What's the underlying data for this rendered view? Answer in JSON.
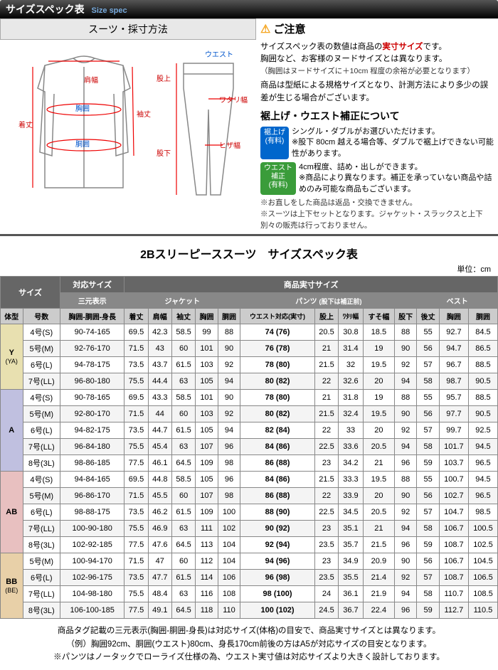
{
  "header": {
    "jp": "サイズスペック表",
    "en": "Size spec"
  },
  "diagram": {
    "title": "スーツ・採寸方法",
    "labels": {
      "kitake": "着丈",
      "katahaba": "肩幅",
      "kyoui": "胸囲",
      "doui": "胴囲",
      "sodetake": "袖丈",
      "waist": "ウエスト",
      "matagami": "股上",
      "watari": "ワタリ幅",
      "matashita": "股下",
      "hiza": "ヒザ幅"
    }
  },
  "notice": {
    "title": "ご注意",
    "line1a": "サイズスペック表の数値は商品の",
    "line1b": "実寸サイズ",
    "line1c": "です。",
    "line2": "胸囲など、お客様のヌードサイズとは異なります。",
    "line3": "（胸囲はヌードサイズに＋10cm 程度の余裕が必要となります）",
    "line4": "商品は型紙による規格サイズとなり、計測方法により多少の誤差が生じる場合がございます。",
    "sub_title": "裾上げ・ウエスト補正について",
    "badge1": "裾上げ\n(有料)",
    "badge1_text": "シングル・ダブルがお選びいただけます。\n※股下 80cm 越える場合等、ダブルで裾上げできない可能性があります。",
    "badge2": "ウエスト\n補正\n(有料)",
    "badge2_text": "4cm程度、詰め・出しができます。\n※商品により異なります。補正を承っていない商品や詰めのみ可能な商品もございます。",
    "note1": "※お直しをした商品は返品・交換できません。",
    "note2": "※スーツは上下セットとなります。ジャケット・スラックスと上下別々の販売は行っておりません。"
  },
  "table": {
    "title": "2Bスリーピーススーツ　サイズスペック表",
    "unit": "単位：cm",
    "headers": {
      "size": "サイズ",
      "taiou": "対応サイズ",
      "jissun": "商品実寸サイズ",
      "sangen": "三元表示",
      "jacket": "ジャケット",
      "pants": "パンツ",
      "pants_note": "(股下は補正前)",
      "vest": "ベスト",
      "taikei": "体型",
      "gousu": "号数",
      "sangen_sub": "胸囲-胴囲-身長",
      "j": [
        "着丈",
        "肩幅",
        "袖丈",
        "胸囲",
        "胴囲"
      ],
      "p": [
        "ウエスト対応(実寸)",
        "股上",
        "ﾜﾀﾘ幅",
        "すそ幅",
        "股下"
      ],
      "v": [
        "後丈",
        "胸囲",
        "胴囲"
      ]
    },
    "groups": [
      {
        "type": "Y",
        "sub": "(YA)",
        "cls": "type-Y",
        "rows": [
          {
            "g": "4号(S)",
            "s": "90-74-165",
            "j": [
              69.5,
              42.3,
              58.5,
              99,
              88
            ],
            "w": "74 (76)",
            "p": [
              20.5,
              30.8,
              18.5,
              88
            ],
            "v": [
              55,
              92.7,
              84.5
            ]
          },
          {
            "g": "5号(M)",
            "s": "92-76-170",
            "j": [
              71.5,
              43.0,
              60.0,
              101,
              90
            ],
            "w": "76 (78)",
            "p": [
              21.0,
              31.4,
              19.0,
              90
            ],
            "v": [
              56,
              94.7,
              86.5
            ]
          },
          {
            "g": "6号(L)",
            "s": "94-78-175",
            "j": [
              73.5,
              43.7,
              61.5,
              103,
              92
            ],
            "w": "78 (80)",
            "p": [
              21.5,
              32.0,
              19.5,
              92
            ],
            "v": [
              57,
              96.7,
              88.5
            ]
          },
          {
            "g": "7号(LL)",
            "s": "96-80-180",
            "j": [
              75.5,
              44.4,
              63.0,
              105,
              94
            ],
            "w": "80 (82)",
            "p": [
              22.0,
              32.6,
              20.0,
              94
            ],
            "v": [
              58,
              98.7,
              90.5
            ]
          }
        ]
      },
      {
        "type": "A",
        "sub": "",
        "cls": "type-A",
        "rows": [
          {
            "g": "4号(S)",
            "s": "90-78-165",
            "j": [
              69.5,
              43.3,
              58.5,
              101,
              90
            ],
            "w": "78 (80)",
            "p": [
              21.0,
              31.8,
              19.0,
              88
            ],
            "v": [
              55,
              95.7,
              88.5
            ]
          },
          {
            "g": "5号(M)",
            "s": "92-80-170",
            "j": [
              71.5,
              44.0,
              60.0,
              103,
              92
            ],
            "w": "80 (82)",
            "p": [
              21.5,
              32.4,
              19.5,
              90
            ],
            "v": [
              56,
              97.7,
              90.5
            ]
          },
          {
            "g": "6号(L)",
            "s": "94-82-175",
            "j": [
              73.5,
              44.7,
              61.5,
              105,
              94
            ],
            "w": "82 (84)",
            "p": [
              22.0,
              33.0,
              20.0,
              92
            ],
            "v": [
              57,
              99.7,
              92.5
            ]
          },
          {
            "g": "7号(LL)",
            "s": "96-84-180",
            "j": [
              75.5,
              45.4,
              63.0,
              107,
              96
            ],
            "w": "84 (86)",
            "p": [
              22.5,
              33.6,
              20.5,
              94
            ],
            "v": [
              58,
              101.7,
              94.5
            ]
          },
          {
            "g": "8号(3L)",
            "s": "98-86-185",
            "j": [
              77.5,
              46.1,
              64.5,
              109,
              98
            ],
            "w": "86 (88)",
            "p": [
              23.0,
              34.2,
              21.0,
              96
            ],
            "v": [
              59,
              103.7,
              96.5
            ]
          }
        ]
      },
      {
        "type": "AB",
        "sub": "",
        "cls": "type-AB",
        "rows": [
          {
            "g": "4号(S)",
            "s": "94-84-165",
            "j": [
              69.5,
              44.8,
              58.5,
              105,
              96
            ],
            "w": "84 (86)",
            "p": [
              21.5,
              33.3,
              19.5,
              88
            ],
            "v": [
              55,
              100.7,
              94.5
            ]
          },
          {
            "g": "5号(M)",
            "s": "96-86-170",
            "j": [
              71.5,
              45.5,
              60.0,
              107,
              98
            ],
            "w": "86 (88)",
            "p": [
              22.0,
              33.9,
              20.0,
              90
            ],
            "v": [
              56,
              102.7,
              96.5
            ]
          },
          {
            "g": "6号(L)",
            "s": "98-88-175",
            "j": [
              73.5,
              46.2,
              61.5,
              109,
              100
            ],
            "w": "88 (90)",
            "p": [
              22.5,
              34.5,
              20.5,
              92
            ],
            "v": [
              57,
              104.7,
              98.5
            ]
          },
          {
            "g": "7号(LL)",
            "s": "100-90-180",
            "j": [
              75.5,
              46.9,
              63.0,
              111,
              102
            ],
            "w": "90 (92)",
            "p": [
              23.0,
              35.1,
              21.0,
              94
            ],
            "v": [
              58,
              106.7,
              100.5
            ]
          },
          {
            "g": "8号(3L)",
            "s": "102-92-185",
            "j": [
              77.5,
              47.6,
              64.5,
              113,
              104
            ],
            "w": "92 (94)",
            "p": [
              23.5,
              35.7,
              21.5,
              96
            ],
            "v": [
              59,
              108.7,
              102.5
            ]
          }
        ]
      },
      {
        "type": "BB",
        "sub": "(BE)",
        "cls": "type-BB",
        "rows": [
          {
            "g": "5号(M)",
            "s": "100-94-170",
            "j": [
              71.5,
              47.0,
              60.0,
              112,
              104
            ],
            "w": "94 (96)",
            "p": [
              23.0,
              34.9,
              20.9,
              90
            ],
            "v": [
              56,
              106.7,
              104.5
            ]
          },
          {
            "g": "6号(L)",
            "s": "102-96-175",
            "j": [
              73.5,
              47.7,
              61.5,
              114,
              106
            ],
            "w": "96 (98)",
            "p": [
              23.5,
              35.5,
              21.4,
              92
            ],
            "v": [
              57,
              108.7,
              106.5
            ]
          },
          {
            "g": "7号(LL)",
            "s": "104-98-180",
            "j": [
              75.5,
              48.4,
              63.0,
              116,
              108
            ],
            "w": "98 (100)",
            "p": [
              24.0,
              36.1,
              21.9,
              94
            ],
            "v": [
              58,
              110.7,
              108.5
            ]
          },
          {
            "g": "8号(3L)",
            "s": "106-100-185",
            "j": [
              77.5,
              49.1,
              64.5,
              118,
              110
            ],
            "w": "100 (102)",
            "p": [
              24.5,
              36.7,
              22.4,
              96
            ],
            "v": [
              59,
              112.7,
              110.5
            ]
          }
        ]
      }
    ]
  },
  "footnote": {
    "l1": "商品タグ記載の三元表示(胸囲-胴囲-身長)は対応サイズ(体格)の目安で、商品実寸サイズとは異なります。",
    "l2": "（例）胸囲92cm、胴囲(ウエスト)80cm、身長170cm前後の方はA5が対応サイズの目安となります。",
    "l3": "※パンツはノータックでローライズ仕様の為、ウエスト実寸値は対応サイズより大きく設計しております。"
  }
}
